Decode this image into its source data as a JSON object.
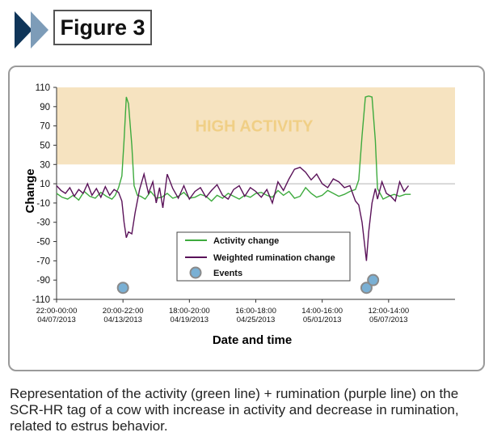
{
  "figure": {
    "label": "Figure 3"
  },
  "caption": "Representation of the activity (green line) + rumination (purple line) on the SCR-HR tag of a cow with increase in activity and decrease in rumination, related to estrus behavior.",
  "colors": {
    "activity": "#3daa3d",
    "rumination": "#5a1259",
    "events_fill": "#7ab0d4",
    "events_stroke": "#8a8a8a",
    "high_band": "#f6e3c0",
    "high_text": "#f0cf86",
    "chevron_dark": "#0f3559",
    "chevron_light": "#7d9cb8"
  },
  "chart_data": {
    "type": "line",
    "xlabel": "Date and time",
    "ylabel": "Change",
    "ylim": [
      -110,
      110
    ],
    "yticks": [
      110,
      90,
      70,
      50,
      30,
      10,
      -10,
      -30,
      -50,
      -70,
      -90,
      -110
    ],
    "xlim": [
      0,
      36
    ],
    "xticks": [
      {
        "x": 0,
        "line1": "22:00-00:00",
        "line2": "04/07/2013"
      },
      {
        "x": 6,
        "line1": "20:00-22:00",
        "line2": "04/13/2013"
      },
      {
        "x": 12,
        "line1": "18:00-20:00",
        "line2": "04/19/2013"
      },
      {
        "x": 18,
        "line1": "16:00-18:00",
        "line2": "04/25/2013"
      },
      {
        "x": 24,
        "line1": "14:00-16:00",
        "line2": "05/01/2013"
      },
      {
        "x": 30,
        "line1": "12:00-14:00",
        "line2": "05/07/2013"
      }
    ],
    "reference_lines": [
      10
    ],
    "bands": [
      {
        "label": "HIGH ACTIVITY",
        "y0": 30,
        "y1": 110
      }
    ],
    "series": [
      {
        "name": "Activity change",
        "key": "activity",
        "x": [
          0,
          0.5,
          1,
          1.5,
          2,
          2.5,
          3,
          3.5,
          4,
          4.5,
          5,
          5.3,
          5.6,
          5.9,
          6.1,
          6.3,
          6.5,
          6.8,
          7,
          7.3,
          7.6,
          8,
          8.5,
          9,
          9.5,
          10,
          10.5,
          11,
          11.5,
          12,
          12.5,
          13,
          13.5,
          14,
          14.5,
          15,
          15.5,
          16,
          16.5,
          17,
          17.5,
          18,
          18.5,
          19,
          19.5,
          20,
          20.5,
          21,
          21.5,
          22,
          22.5,
          23,
          23.5,
          24,
          24.5,
          25,
          25.5,
          26,
          26.5,
          27,
          27.3,
          27.6,
          27.9,
          28.2,
          28.5,
          28.8,
          29,
          29.5,
          30,
          30.5,
          31,
          31.5,
          32
        ],
        "values": [
          0,
          -4,
          -6,
          -2,
          -7,
          2,
          -3,
          -5,
          1,
          -3,
          -6,
          -2,
          6,
          18,
          55,
          100,
          93,
          50,
          8,
          -2,
          -3,
          -6,
          2,
          -5,
          -4,
          0,
          -5,
          -3,
          1,
          -5,
          -4,
          -1,
          -3,
          -8,
          -2,
          -5,
          0,
          -3,
          -6,
          -2,
          -4,
          0,
          1,
          -2,
          -4,
          3,
          -2,
          2,
          -5,
          -3,
          6,
          0,
          -4,
          -2,
          3,
          0,
          -3,
          -1,
          2,
          4,
          14,
          60,
          100,
          101,
          100,
          55,
          5,
          -6,
          -3,
          -1,
          -3,
          -1,
          -1
        ]
      },
      {
        "name": "Weighted rumination change",
        "key": "rumination",
        "x": [
          0,
          0.4,
          0.8,
          1.2,
          1.6,
          2,
          2.4,
          2.8,
          3.2,
          3.6,
          4,
          4.4,
          4.8,
          5.2,
          5.6,
          5.9,
          6.1,
          6.3,
          6.5,
          6.8,
          7.1,
          7.5,
          7.9,
          8.3,
          8.7,
          9,
          9.3,
          9.6,
          10,
          10.5,
          11,
          11.5,
          12,
          12.5,
          13,
          13.5,
          14,
          14.5,
          15,
          15.5,
          16,
          16.5,
          17,
          17.5,
          18,
          18.5,
          19,
          19.5,
          20,
          20.5,
          21,
          21.5,
          22,
          22.5,
          23,
          23.5,
          24,
          24.5,
          25,
          25.5,
          26,
          26.5,
          27,
          27.3,
          27.6,
          27.8,
          28,
          28.2,
          28.5,
          28.8,
          29,
          29.4,
          29.8,
          30.2,
          30.6,
          31,
          31.4,
          31.8
        ],
        "values": [
          8,
          3,
          0,
          6,
          -3,
          4,
          0,
          10,
          -2,
          5,
          -4,
          7,
          -2,
          4,
          1,
          -8,
          -30,
          -46,
          -40,
          -42,
          -20,
          4,
          20,
          0,
          12,
          -10,
          6,
          -15,
          20,
          5,
          -5,
          8,
          -6,
          2,
          6,
          -4,
          3,
          9,
          -2,
          -6,
          4,
          8,
          -3,
          6,
          2,
          -4,
          4,
          -10,
          12,
          3,
          15,
          25,
          27,
          22,
          14,
          20,
          10,
          6,
          15,
          12,
          6,
          8,
          -8,
          -12,
          -30,
          -50,
          -70,
          -40,
          -10,
          5,
          -6,
          12,
          0,
          -3,
          -8,
          12,
          2,
          8
        ]
      }
    ],
    "events": {
      "name": "Events",
      "points": [
        {
          "x": 6,
          "y": -98
        },
        {
          "x": 28.0,
          "y": -98
        },
        {
          "x": 28.6,
          "y": -90
        }
      ]
    },
    "legend": {
      "position": "lower-center"
    }
  }
}
